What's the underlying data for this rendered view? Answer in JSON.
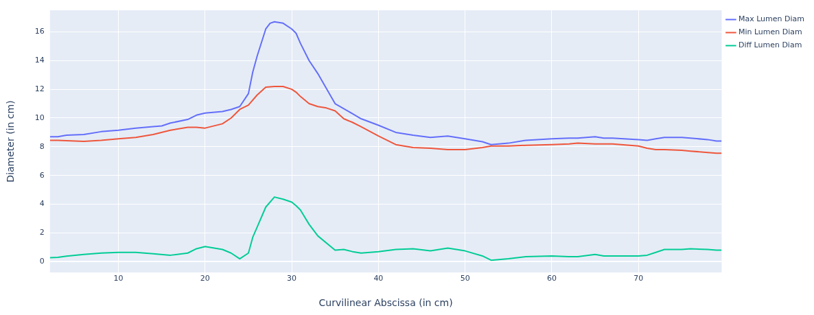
{
  "chart_data": {
    "type": "line",
    "xlabel": "Curvilinear Abscissa (in cm)",
    "ylabel": "Diameter (in cm)",
    "xlim": [
      2.1,
      79.6
    ],
    "ylim": [
      -0.75,
      17.5
    ],
    "xticks": [
      10,
      20,
      30,
      40,
      50,
      60,
      70
    ],
    "yticks": [
      0,
      2,
      4,
      6,
      8,
      10,
      12,
      14,
      16
    ],
    "grid": true,
    "legend": "top right",
    "marker": "none",
    "line_style": "solid",
    "series": [
      {
        "name": "Max Lumen Diam",
        "color": "#636efa",
        "x": [
          2.1,
          3,
          4,
          6,
          8,
          10,
          12,
          14,
          15,
          16,
          18,
          19,
          20,
          22,
          23,
          24,
          25,
          25.5,
          26,
          27,
          27.5,
          28,
          29,
          30,
          30.5,
          31,
          32,
          33,
          35,
          37,
          38,
          40,
          42,
          44,
          46,
          48,
          50,
          52,
          53,
          55,
          57,
          60,
          62,
          63,
          65,
          66,
          67,
          70,
          71,
          72,
          73,
          75,
          76,
          78,
          79,
          79.6
        ],
        "values": [
          8.7,
          8.7,
          8.8,
          8.85,
          9.05,
          9.15,
          9.3,
          9.4,
          9.45,
          9.65,
          9.9,
          10.2,
          10.35,
          10.45,
          10.6,
          10.8,
          11.7,
          13.2,
          14.3,
          16.2,
          16.6,
          16.7,
          16.6,
          16.2,
          15.9,
          15.2,
          14.0,
          13.1,
          11.0,
          10.3,
          9.95,
          9.5,
          9.0,
          8.8,
          8.65,
          8.75,
          8.55,
          8.35,
          8.15,
          8.25,
          8.45,
          8.55,
          8.6,
          8.6,
          8.7,
          8.6,
          8.6,
          8.5,
          8.45,
          8.55,
          8.65,
          8.65,
          8.6,
          8.5,
          8.4,
          8.4
        ]
      },
      {
        "name": "Min Lumen Diam",
        "color": "#ef553b",
        "x": [
          2.1,
          3,
          4,
          6,
          8,
          10,
          12,
          14,
          16,
          18,
          19,
          20,
          22,
          23,
          24,
          25,
          26,
          27,
          28,
          29,
          30,
          30.5,
          31,
          32,
          33,
          34,
          35,
          36,
          37,
          38,
          40,
          42,
          44,
          46,
          48,
          50,
          52,
          53,
          55,
          57,
          60,
          62,
          63,
          65,
          66,
          67,
          70,
          71,
          72,
          73,
          75,
          76,
          78,
          79,
          79.6
        ],
        "values": [
          8.45,
          8.45,
          8.42,
          8.38,
          8.45,
          8.55,
          8.65,
          8.85,
          9.15,
          9.35,
          9.35,
          9.3,
          9.6,
          10.0,
          10.6,
          10.9,
          11.6,
          12.15,
          12.2,
          12.2,
          12.0,
          11.8,
          11.5,
          11.0,
          10.8,
          10.7,
          10.5,
          9.95,
          9.7,
          9.4,
          8.75,
          8.15,
          7.95,
          7.9,
          7.8,
          7.8,
          7.95,
          8.05,
          8.05,
          8.1,
          8.15,
          8.2,
          8.25,
          8.2,
          8.2,
          8.2,
          8.05,
          7.9,
          7.8,
          7.8,
          7.75,
          7.7,
          7.6,
          7.55,
          7.55
        ]
      },
      {
        "name": "Diff Lumen Diam",
        "color": "#00cc96",
        "x": [
          2.1,
          3,
          4,
          6,
          8,
          10,
          12,
          14,
          16,
          18,
          19,
          20,
          22,
          23,
          24,
          25,
          25.5,
          26,
          27,
          28,
          29,
          30,
          30.5,
          31,
          32,
          33,
          35,
          36,
          37,
          38,
          40,
          42,
          44,
          46,
          48,
          50,
          52,
          53,
          55,
          57,
          60,
          62,
          63,
          65,
          66,
          67,
          70,
          71,
          72,
          73,
          75,
          76,
          78,
          79,
          79.6
        ],
        "values": [
          0.28,
          0.3,
          0.38,
          0.5,
          0.6,
          0.65,
          0.65,
          0.55,
          0.45,
          0.6,
          0.9,
          1.05,
          0.85,
          0.6,
          0.2,
          0.6,
          1.7,
          2.4,
          3.8,
          4.5,
          4.35,
          4.15,
          3.9,
          3.6,
          2.6,
          1.8,
          0.8,
          0.85,
          0.7,
          0.6,
          0.7,
          0.85,
          0.9,
          0.75,
          0.95,
          0.75,
          0.4,
          0.1,
          0.2,
          0.35,
          0.4,
          0.35,
          0.35,
          0.5,
          0.4,
          0.4,
          0.4,
          0.45,
          0.65,
          0.85,
          0.85,
          0.9,
          0.85,
          0.8,
          0.8
        ]
      }
    ]
  }
}
